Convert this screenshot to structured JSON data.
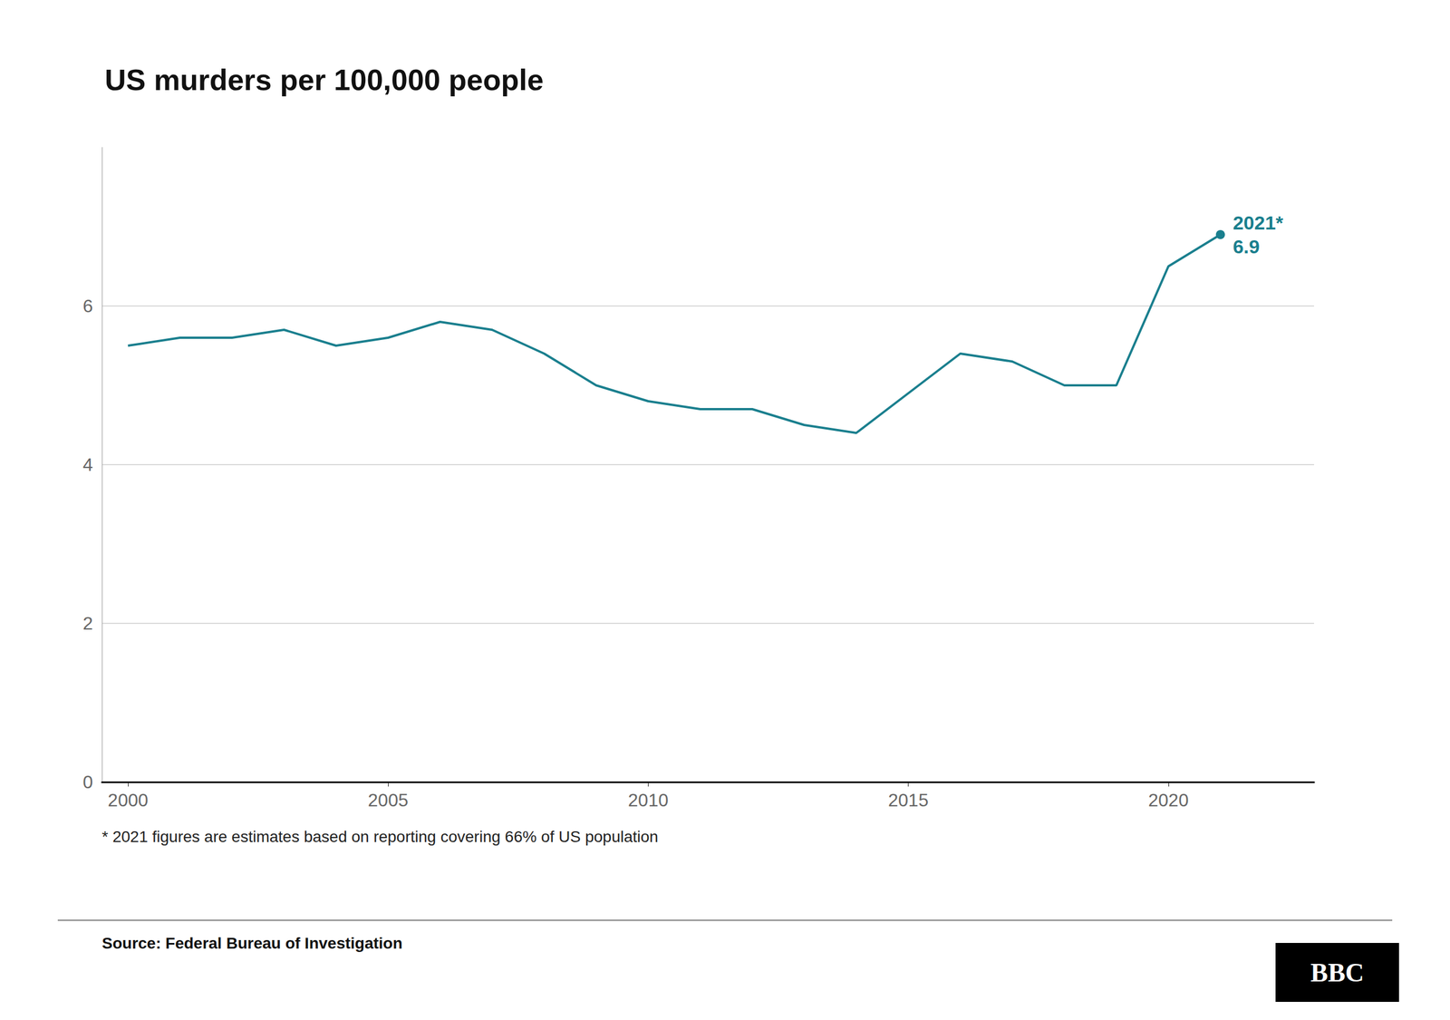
{
  "chart_data": {
    "type": "line",
    "title": "US murders per 100,000 people",
    "x": [
      2000,
      2001,
      2002,
      2003,
      2004,
      2005,
      2006,
      2007,
      2008,
      2009,
      2010,
      2011,
      2012,
      2013,
      2014,
      2015,
      2016,
      2017,
      2018,
      2019,
      2020,
      2021
    ],
    "values": [
      5.5,
      5.6,
      5.6,
      5.7,
      5.5,
      5.6,
      5.8,
      5.7,
      5.4,
      5.0,
      4.8,
      4.7,
      4.7,
      4.5,
      4.4,
      4.9,
      5.4,
      5.3,
      5.0,
      5.0,
      6.5,
      6.9
    ],
    "color": "#1a7f8e",
    "xlim": [
      1999.5,
      2022.8
    ],
    "xticks": [
      2000,
      2005,
      2010,
      2015,
      2020
    ],
    "ylim": [
      0,
      8.0
    ],
    "yticks": [
      0,
      2,
      4,
      6
    ],
    "grid": true,
    "annotations": [
      "2021*",
      "6.9"
    ],
    "footnote": "* 2021 figures are estimates based on reporting covering 66% of US population",
    "source": "Source: Federal Bureau of Investigation",
    "logo": "BBC"
  }
}
